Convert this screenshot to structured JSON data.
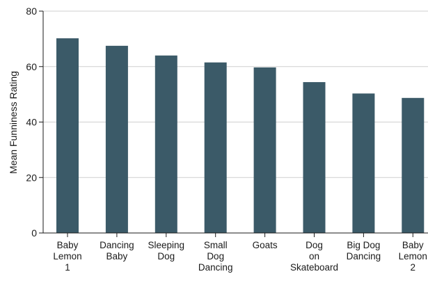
{
  "chart_data": {
    "type": "bar",
    "categories": [
      [
        "Baby",
        "Lemon",
        "1"
      ],
      [
        "Dancing",
        "Baby"
      ],
      [
        "Sleeping",
        "Dog"
      ],
      [
        "Small",
        "Dog",
        "Dancing"
      ],
      [
        "Goats"
      ],
      [
        "Dog",
        "on",
        "Skateboard"
      ],
      [
        "Big Dog",
        "Dancing"
      ],
      [
        "Baby",
        "Lemon",
        "2"
      ]
    ],
    "values": [
      70.2,
      67.5,
      64.0,
      61.5,
      59.7,
      54.4,
      50.3,
      48.7
    ],
    "title": "",
    "xlabel": "",
    "ylabel": "Mean Funniness Rating",
    "ylim": [
      0,
      80
    ],
    "yticks": [
      0,
      20,
      40,
      60,
      80
    ],
    "grid": true,
    "bar_color": "#3b5a68",
    "grid_color": "#cfcfcf"
  }
}
